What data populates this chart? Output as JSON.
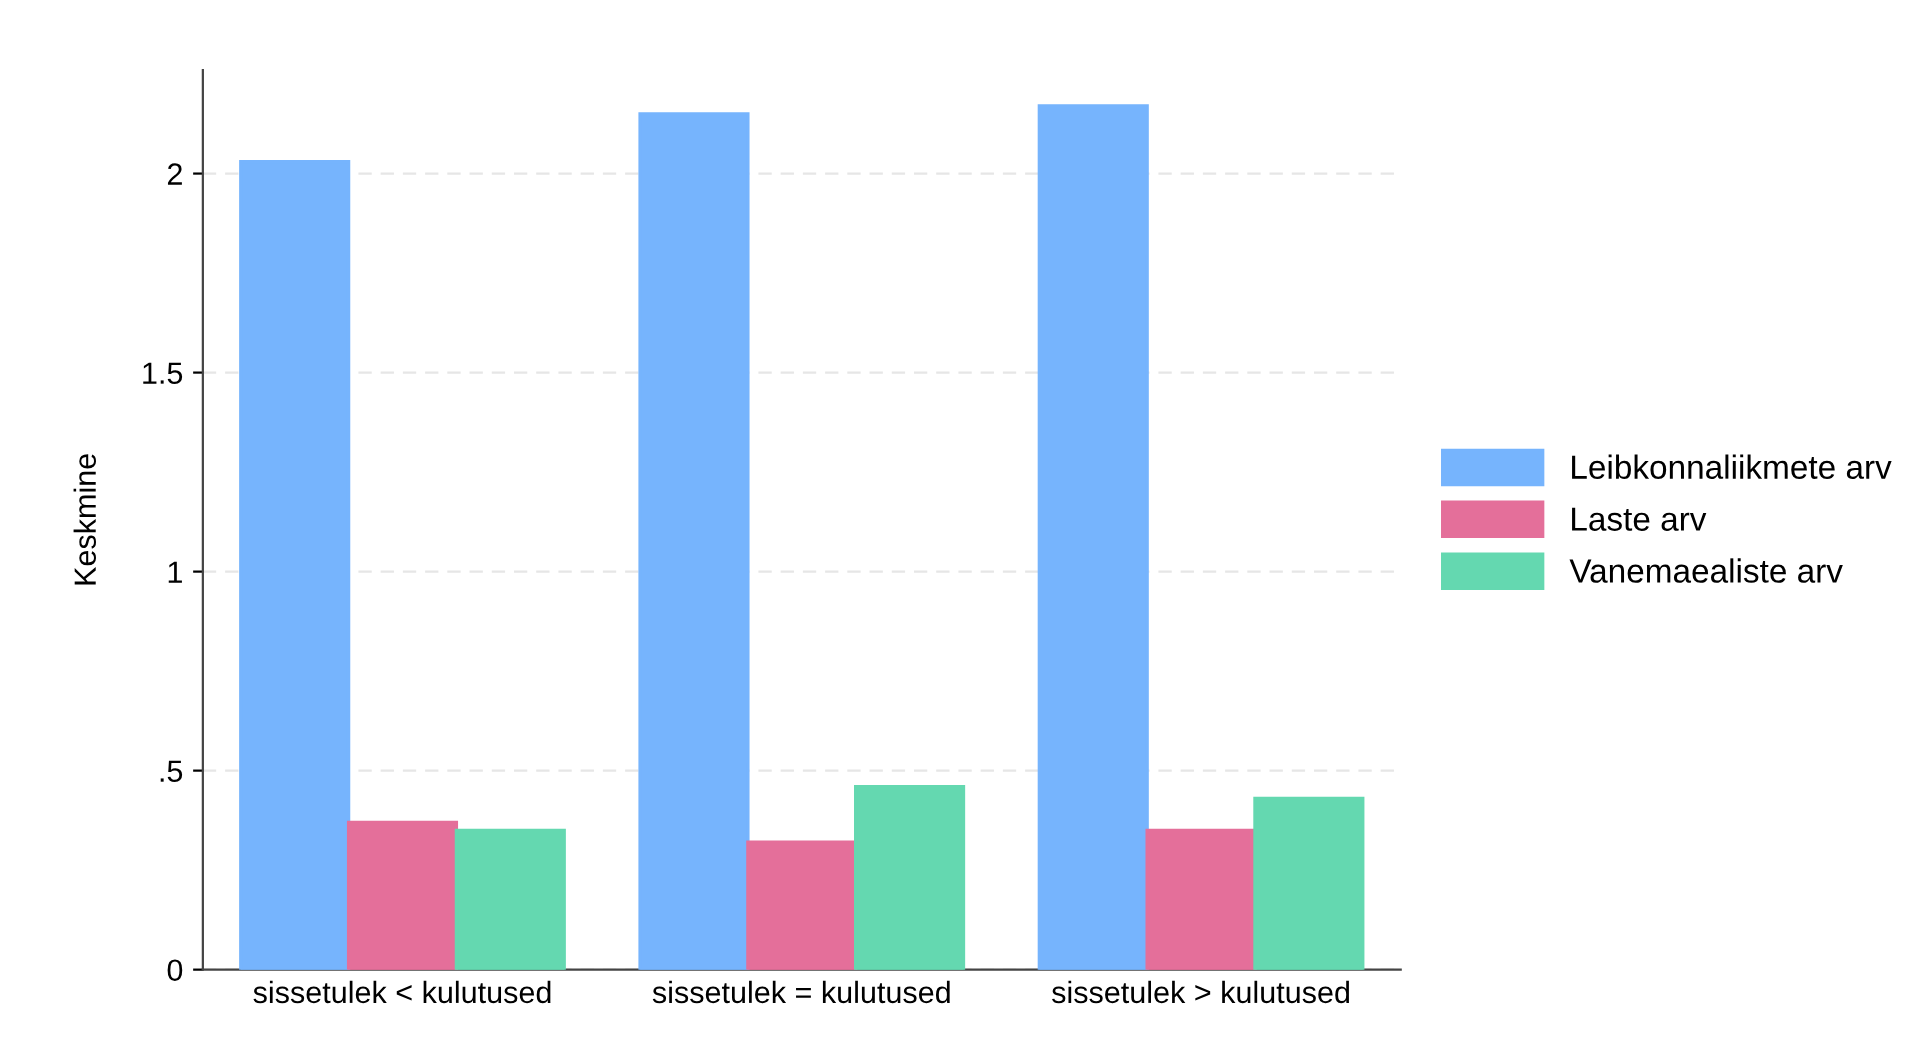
{
  "chart_data": {
    "type": "bar",
    "ylabel": "Keskmine",
    "categories": [
      "sissetulek < kulutused",
      "sissetulek = kulutused",
      "sissetulek > kulutused"
    ],
    "series": [
      {
        "name": "Leibkonnaliikmete arv",
        "color": "#76b4fd",
        "values": [
          2.03,
          2.15,
          2.17
        ]
      },
      {
        "name": "Laste arv",
        "color": "#e46f9a",
        "values": [
          0.37,
          0.32,
          0.35
        ]
      },
      {
        "name": "Vanemaealiste arv",
        "color": "#64d8b0",
        "values": [
          0.35,
          0.46,
          0.43
        ]
      }
    ],
    "ylim": [
      0,
      2.26
    ],
    "yticks": [
      0,
      {
        "value": 0.5,
        "label": ".5"
      },
      1,
      1.5,
      2
    ],
    "grid": "y",
    "legend": "right"
  }
}
